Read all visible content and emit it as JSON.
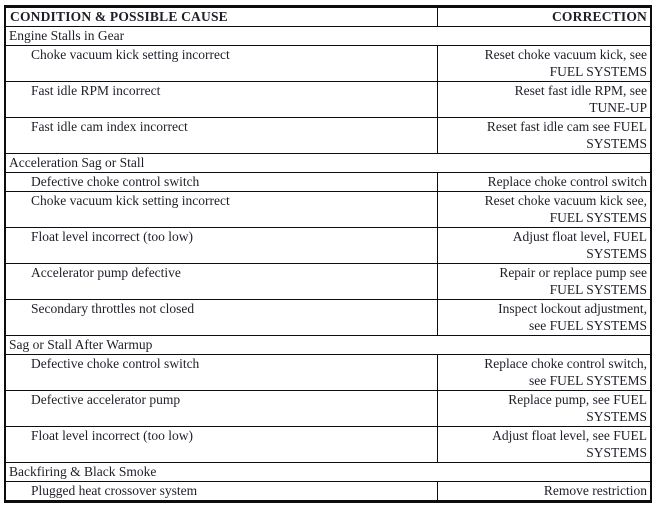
{
  "table": {
    "columns": [
      {
        "label": "CONDITION & POSSIBLE CAUSE"
      },
      {
        "label": "CORRECTION"
      }
    ],
    "sections": [
      {
        "title": "Engine Stalls in Gear",
        "rows": [
          {
            "cause": "Choke vacuum kick setting incorrect",
            "correction": "Reset choke vacuum kick, see\nFUEL SYSTEMS"
          },
          {
            "cause": "Fast idle RPM incorrect",
            "correction": "Reset fast idle RPM, see\nTUNE-UP"
          },
          {
            "cause": "Fast idle cam index incorrect",
            "correction": "Reset fast idle cam see FUEL\nSYSTEMS"
          }
        ]
      },
      {
        "title": "Acceleration Sag or Stall",
        "rows": [
          {
            "cause": "Defective choke control switch",
            "correction": "Replace choke control switch"
          },
          {
            "cause": "Choke vacuum kick setting incorrect",
            "correction": "Reset choke vacuum kick see,\nFUEL SYSTEMS"
          },
          {
            "cause": "Float level incorrect (too low)",
            "correction": "Adjust float level, FUEL\nSYSTEMS"
          },
          {
            "cause": "Accelerator pump defective",
            "correction": "Repair or replace pump see\nFUEL SYSTEMS"
          },
          {
            "cause": "Secondary throttles not closed",
            "correction": "Inspect lockout adjustment,\nsee FUEL SYSTEMS"
          }
        ]
      },
      {
        "title": "Sag or Stall After Warmup",
        "rows": [
          {
            "cause": "Defective choke control switch",
            "correction": "Replace choke control switch,\nsee FUEL SYSTEMS"
          },
          {
            "cause": "Defective accelerator pump",
            "correction": "Replace pump, see FUEL\nSYSTEMS"
          },
          {
            "cause": "Float level incorrect (too low)",
            "correction": "Adjust float level, see FUEL\nSYSTEMS"
          }
        ]
      },
      {
        "title": "Backfiring & Black Smoke",
        "rows": [
          {
            "cause": "Plugged heat crossover system",
            "correction": "Remove restriction"
          }
        ]
      }
    ]
  },
  "colors": {
    "background": "#ffffff",
    "text": "#1e1e28",
    "border": "#0d0d0d"
  }
}
